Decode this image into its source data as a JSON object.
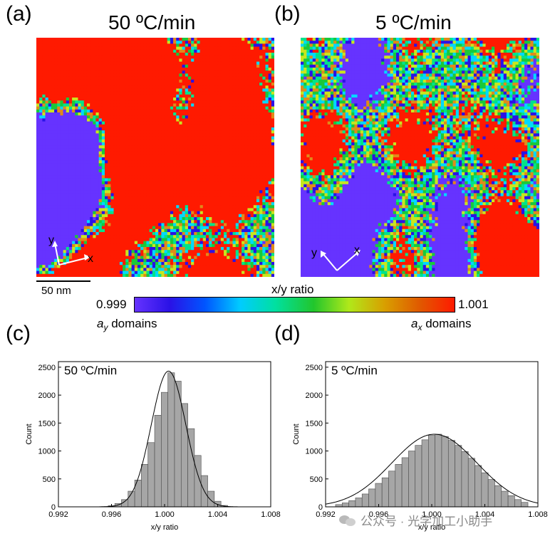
{
  "panels": {
    "a": {
      "letter": "(a)",
      "title": "50 ºC/min",
      "map_seed": 7
    },
    "b": {
      "letter": "(b)",
      "title": "5 ºC/min",
      "map_seed": 19
    },
    "c": {
      "letter": "(c)"
    },
    "d": {
      "letter": "(d)"
    }
  },
  "scalebar": {
    "label": "50 nm"
  },
  "axes_glyph": {
    "x": "x",
    "y": "y"
  },
  "colorbar": {
    "title": "x/y ratio",
    "min_label": "0.999",
    "max_label": "1.001",
    "left_note_base": "a",
    "left_note_sub": "y",
    "left_note_rest": " domains",
    "right_note_base": "a",
    "right_note_sub": "x",
    "right_note_rest": " domains",
    "stops": [
      "#6633ff",
      "#2a12e6",
      "#0055ff",
      "#00ccff",
      "#00e0a0",
      "#22c62c",
      "#b0e81a",
      "#d8a000",
      "#e05a00",
      "#ff1a00"
    ]
  },
  "colors": {
    "red": "#ff1a00",
    "blue": "#6633ff",
    "interface": [
      "#00d8ff",
      "#00e38a",
      "#19c93a",
      "#c8e61e",
      "#2a12e6",
      "#e08a1a"
    ],
    "bar": "#a6a6a6"
  },
  "chart_data": [
    {
      "type": "bar",
      "title": "50 ºC/min",
      "xlabel": "x/y ratio",
      "ylabel": "Count",
      "xlim": [
        0.992,
        1.008
      ],
      "ylim": [
        0,
        2600
      ],
      "xticks": [
        "0.992",
        "0.996",
        "1.000",
        "1.004",
        "1.008"
      ],
      "yticks": [
        "0",
        "500",
        "1000",
        "1500",
        "2000",
        "2500"
      ],
      "bin_width": 0.0005,
      "x": [
        0.9955,
        0.996,
        0.9965,
        0.997,
        0.9975,
        0.998,
        0.9985,
        0.999,
        0.9995,
        1.0,
        1.0005,
        1.001,
        1.0015,
        1.002,
        1.0025,
        1.003,
        1.0035,
        1.004,
        1.0045
      ],
      "values": [
        5,
        20,
        60,
        130,
        280,
        480,
        760,
        1150,
        1640,
        2050,
        2400,
        2250,
        1850,
        1400,
        920,
        560,
        280,
        100,
        25
      ],
      "fit": {
        "type": "gaussian",
        "mean": 1.0003,
        "sigma": 0.0013,
        "amplitude": 2430
      }
    },
    {
      "type": "bar",
      "title": "5 ºC/min",
      "xlabel": "x/y ratio",
      "ylabel": "Count",
      "xlim": [
        0.992,
        1.008
      ],
      "ylim": [
        0,
        2600
      ],
      "xticks": [
        "0.992",
        "0.996",
        "1.000",
        "1.004",
        "1.008"
      ],
      "yticks": [
        "0",
        "500",
        "1000",
        "1500",
        "2000",
        "2500"
      ],
      "bin_width": 0.0005,
      "x": [
        0.993,
        0.9935,
        0.994,
        0.9945,
        0.995,
        0.9955,
        0.996,
        0.9965,
        0.997,
        0.9975,
        0.998,
        0.9985,
        0.999,
        0.9995,
        1.0,
        1.0005,
        1.001,
        1.0015,
        1.002,
        1.0025,
        1.003,
        1.0035,
        1.004,
        1.0045,
        1.005,
        1.0055,
        1.006,
        1.0065,
        1.007
      ],
      "values": [
        40,
        70,
        110,
        160,
        230,
        320,
        420,
        520,
        640,
        760,
        880,
        1000,
        1100,
        1200,
        1280,
        1300,
        1260,
        1190,
        1100,
        990,
        870,
        740,
        610,
        490,
        380,
        280,
        200,
        130,
        80
      ],
      "fit": {
        "type": "gaussian",
        "mean": 1.0002,
        "sigma": 0.0032,
        "amplitude": 1300
      }
    }
  ],
  "watermark": {
    "text": "公众号 · 光学加工小助手"
  }
}
